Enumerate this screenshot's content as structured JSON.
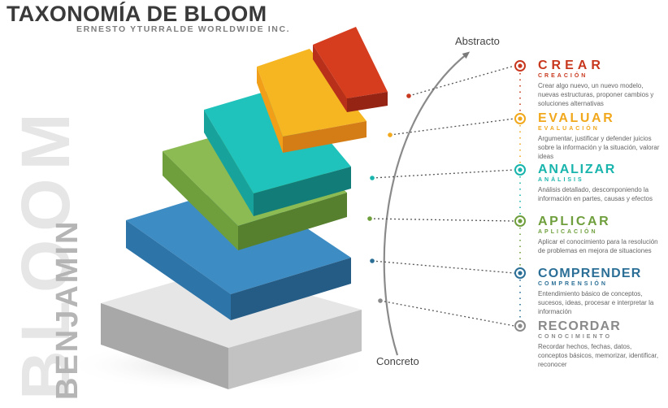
{
  "header": {
    "title": "TAXONOMÍA DE BLOOM",
    "subtitle": "ERNESTO YTURRALDE WORLDWIDE INC."
  },
  "side_text": {
    "surname": "BLOOM",
    "firstname": "BENJAMIN"
  },
  "axis": {
    "top_label": "Abstracto",
    "bottom_label": "Concreto"
  },
  "levels": [
    {
      "title": "CREAR",
      "subtitle": "CREACIÓN",
      "description": "Crear algo nuevo, un nuevo modelo, nuevas estructuras, proponer cambios y soluciones alternativas",
      "color": "#c8381e"
    },
    {
      "title": "EVALUAR",
      "subtitle": "EVALUACIÓN",
      "description": "Argumentar, justificar y defender juicios sobre la información y la situación, valorar ideas",
      "color": "#f1a81c"
    },
    {
      "title": "ANALIZAR",
      "subtitle": "ANÁLISIS",
      "description": "Análisis detallado, descomponiendo la información en partes, causas y efectos",
      "color": "#19b5ad"
    },
    {
      "title": "APLICAR",
      "subtitle": "APLICACIÓN",
      "description": "Aplicar el conocimiento para la resolución de problemas en mejora de situaciones",
      "color": "#6f9f3d"
    },
    {
      "title": "COMPRENDER",
      "subtitle": "COMPRENSIÓN",
      "description": "Entendimiento básico de conceptos, sucesos, ideas, procesar e interpretar la información",
      "color": "#2b6f97"
    },
    {
      "title": "RECORDAR",
      "subtitle": "CONOCIMIENTO",
      "description": "Recordar hechos, fechas, datos, conceptos básicos, memorizar, identificar, reconocer",
      "color": "#8a8a8a"
    }
  ]
}
